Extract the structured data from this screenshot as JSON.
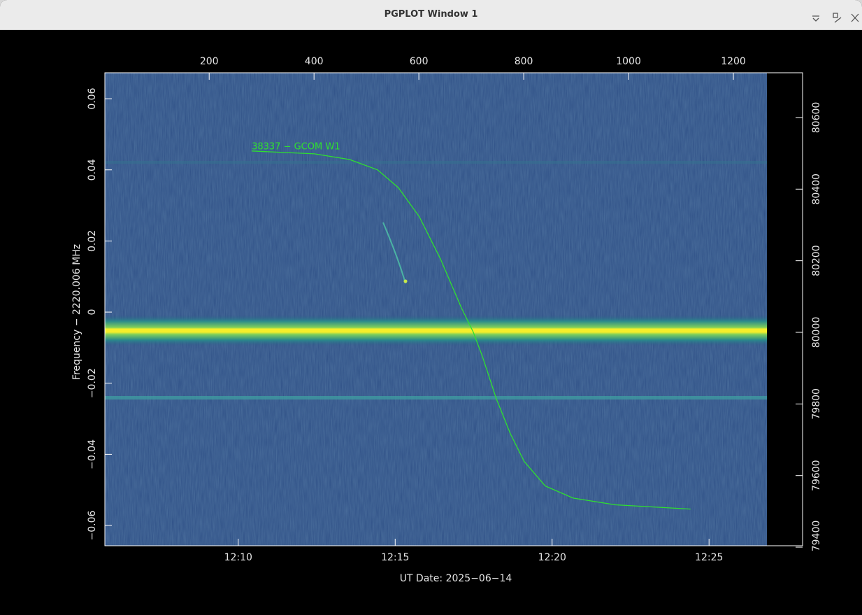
{
  "window_title": "PGPLOT Window 1",
  "chart_data": {
    "type": "line",
    "xlabel": "UT Date: 2025−06−14",
    "ylabel": "Frequency − 2220.006 MHz",
    "annotation": "38337 − GCOM W1",
    "xlim": [
      725.75,
      747.98
    ],
    "xticks": [
      {
        "value": 730,
        "label": "12:10"
      },
      {
        "value": 735,
        "label": "12:15"
      },
      {
        "value": 740,
        "label": "12:20"
      },
      {
        "value": 745,
        "label": "12:25"
      }
    ],
    "x2lim": [
      1,
      1332
    ],
    "x2ticks": [
      200,
      400,
      600,
      800,
      1000,
      1200
    ],
    "ylim": [
      -0.0657,
      0.0673
    ],
    "yticks": [
      0.06,
      0.04,
      0.02,
      0,
      {
        "value": -0.02,
        "label": "−0.02"
      },
      {
        "value": -0.04,
        "label": "−0.04"
      },
      {
        "value": -0.06,
        "label": "−0.06"
      }
    ],
    "y2lim": [
      79404,
      80725
    ],
    "y2ticks": [
      80600,
      80400,
      80200,
      80000,
      79800,
      79600,
      79400
    ],
    "series": [
      {
        "color": "#2fe02f",
        "x": [
          730.43,
          732.43,
          733.55,
          734.44,
          735.1,
          735.77,
          736.44,
          737.11,
          737.49,
          737.78,
          738.22,
          738.67,
          739.11,
          739.78,
          740.67,
          742.01,
          744.41
        ],
        "values": [
          0.0453,
          0.0445,
          0.0429,
          0.04,
          0.035,
          0.0268,
          0.015,
          0.0012,
          -0.0057,
          -0.0125,
          -0.0243,
          -0.0342,
          -0.042,
          -0.0489,
          -0.0523,
          -0.0542,
          -0.0554
        ]
      }
    ]
  }
}
